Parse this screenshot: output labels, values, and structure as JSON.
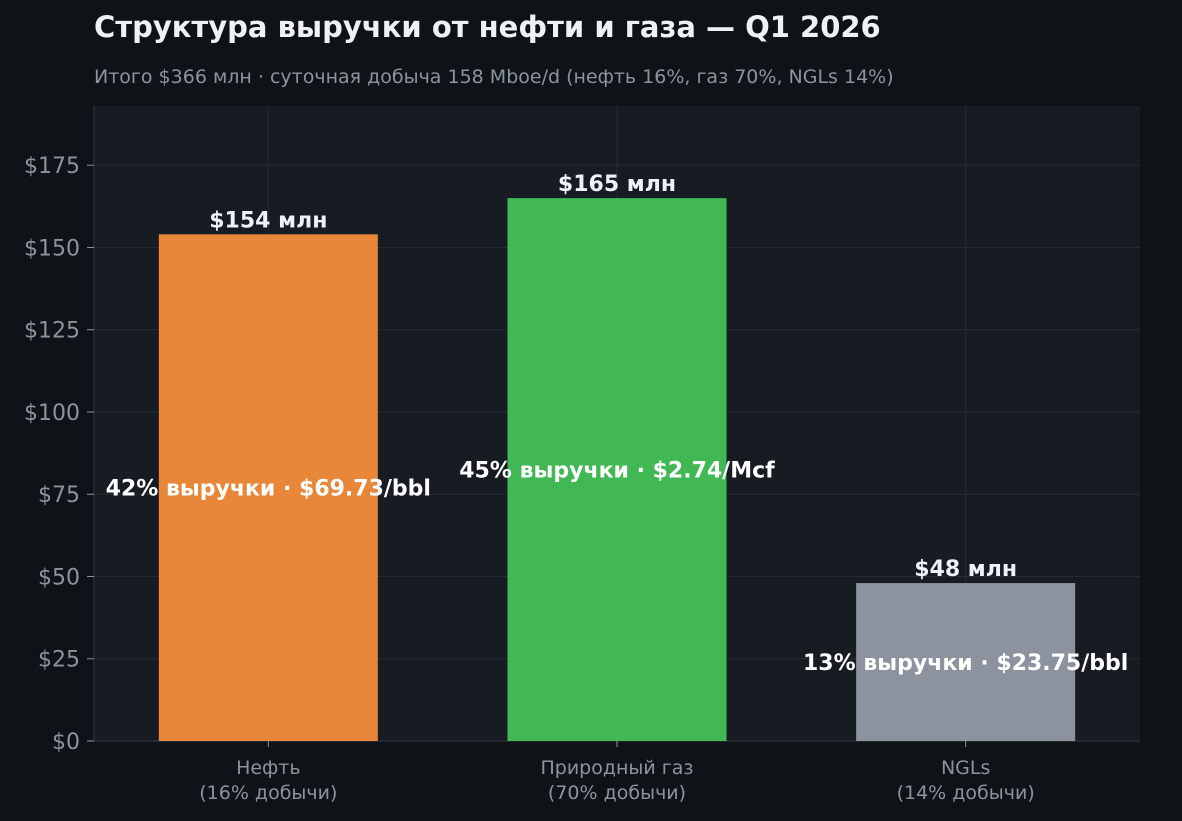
{
  "chart_data": {
    "type": "bar",
    "title": "Структура выручки от нефти и газа — Q1 2026",
    "subtitle": "Итого $366 млн · суточная добыча 158 Mboe/d (нефть 16%, газ 70%, NGLs 14%)",
    "categories": [
      [
        "Нефть",
        "(16% добычи)"
      ],
      [
        "Природный газ",
        "(70% добычи)"
      ],
      [
        "NGLs",
        "(14% добычи)"
      ]
    ],
    "values": [
      154,
      165,
      48
    ],
    "value_labels": [
      "$154 млн",
      "$165 млн",
      "$48 млн"
    ],
    "inner_labels": [
      "42% выручки · $69.73/bbl",
      "45% выручки · $2.74/Mcf",
      "13% выручки · $23.75/bbl"
    ],
    "colors": [
      "#e8873a",
      "#41b853",
      "#8c939e"
    ],
    "ylim": [
      0,
      193
    ],
    "yticks": [
      0,
      25,
      50,
      75,
      100,
      125,
      150,
      175
    ],
    "ytick_labels": [
      "$0",
      "$25",
      "$50",
      "$75",
      "$100",
      "$125",
      "$150",
      "$175"
    ],
    "grid": true,
    "background": "#171b22",
    "page_background": "#0f1318"
  }
}
